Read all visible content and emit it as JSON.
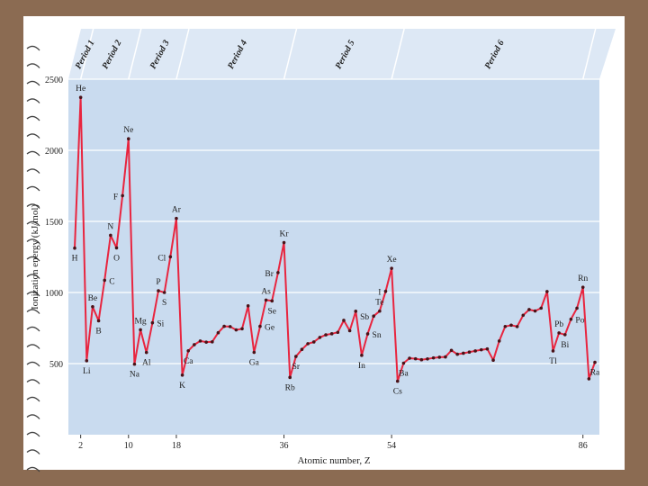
{
  "chart_data": {
    "type": "line",
    "xlabel": "Atomic number, Z",
    "ylabel": "Ionization energy (kJ/mol)",
    "xlim": [
      1,
      88
    ],
    "ylim": [
      0,
      2500
    ],
    "x_ticks": [
      2,
      10,
      18,
      36,
      54,
      86
    ],
    "y_ticks": [
      500,
      1000,
      1500,
      2000,
      2500
    ],
    "grid": true,
    "periods": [
      {
        "label": "Period 1",
        "from": 1,
        "to": 2
      },
      {
        "label": "Period 2",
        "from": 2,
        "to": 10
      },
      {
        "label": "Period 3",
        "from": 10,
        "to": 18
      },
      {
        "label": "Period 4",
        "from": 18,
        "to": 36
      },
      {
        "label": "Period 5",
        "from": 36,
        "to": 54
      },
      {
        "label": "Period 6",
        "from": 54,
        "to": 86
      }
    ],
    "series": [
      {
        "values": [
          [
            1,
            1312
          ],
          [
            2,
            2372
          ],
          [
            3,
            520
          ],
          [
            4,
            900
          ],
          [
            5,
            801
          ],
          [
            6,
            1086
          ],
          [
            7,
            1402
          ],
          [
            8,
            1314
          ],
          [
            9,
            1681
          ],
          [
            10,
            2081
          ],
          [
            11,
            496
          ],
          [
            12,
            738
          ],
          [
            13,
            578
          ],
          [
            14,
            787
          ],
          [
            15,
            1012
          ],
          [
            16,
            1000
          ],
          [
            17,
            1251
          ],
          [
            18,
            1521
          ],
          [
            19,
            419
          ],
          [
            20,
            590
          ],
          [
            21,
            633
          ],
          [
            22,
            659
          ],
          [
            23,
            651
          ],
          [
            24,
            653
          ],
          [
            25,
            717
          ],
          [
            26,
            762
          ],
          [
            27,
            760
          ],
          [
            28,
            737
          ],
          [
            29,
            745
          ],
          [
            30,
            906
          ],
          [
            31,
            579
          ],
          [
            32,
            762
          ],
          [
            33,
            947
          ],
          [
            34,
            941
          ],
          [
            35,
            1140
          ],
          [
            36,
            1351
          ],
          [
            37,
            403
          ],
          [
            38,
            550
          ],
          [
            39,
            600
          ],
          [
            40,
            640
          ],
          [
            41,
            652
          ],
          [
            42,
            684
          ],
          [
            43,
            702
          ],
          [
            44,
            710
          ],
          [
            45,
            720
          ],
          [
            46,
            804
          ],
          [
            47,
            731
          ],
          [
            48,
            868
          ],
          [
            49,
            558
          ],
          [
            50,
            709
          ],
          [
            51,
            834
          ],
          [
            52,
            869
          ],
          [
            53,
            1008
          ],
          [
            54,
            1170
          ],
          [
            55,
            376
          ],
          [
            56,
            503
          ],
          [
            57,
            538
          ],
          [
            58,
            534
          ],
          [
            59,
            527
          ],
          [
            60,
            533
          ],
          [
            61,
            540
          ],
          [
            62,
            545
          ],
          [
            63,
            547
          ],
          [
            64,
            593
          ],
          [
            65,
            566
          ],
          [
            66,
            573
          ],
          [
            67,
            581
          ],
          [
            68,
            589
          ],
          [
            69,
            597
          ],
          [
            70,
            603
          ],
          [
            71,
            524
          ],
          [
            72,
            659
          ],
          [
            73,
            761
          ],
          [
            74,
            770
          ],
          [
            75,
            760
          ],
          [
            76,
            840
          ],
          [
            77,
            880
          ],
          [
            78,
            870
          ],
          [
            79,
            890
          ],
          [
            80,
            1007
          ],
          [
            81,
            589
          ],
          [
            82,
            716
          ],
          [
            83,
            703
          ],
          [
            84,
            812
          ],
          [
            85,
            890
          ],
          [
            86,
            1037
          ],
          [
            87,
            393
          ],
          [
            88,
            509
          ]
        ]
      }
    ],
    "labels": [
      {
        "text": "H",
        "x": 1,
        "y": 1312,
        "pos": "below"
      },
      {
        "text": "He",
        "x": 2,
        "y": 2372,
        "pos": "above"
      },
      {
        "text": "Li",
        "x": 3,
        "y": 520,
        "pos": "below"
      },
      {
        "text": "Be",
        "x": 4,
        "y": 900,
        "pos": "above"
      },
      {
        "text": "B",
        "x": 5,
        "y": 801,
        "pos": "below"
      },
      {
        "text": "C",
        "x": 6,
        "y": 1086,
        "pos": "right"
      },
      {
        "text": "N",
        "x": 7,
        "y": 1402,
        "pos": "above"
      },
      {
        "text": "O",
        "x": 8,
        "y": 1314,
        "pos": "below"
      },
      {
        "text": "F",
        "x": 9,
        "y": 1681,
        "pos": "left"
      },
      {
        "text": "Ne",
        "x": 10,
        "y": 2081,
        "pos": "above"
      },
      {
        "text": "Na",
        "x": 11,
        "y": 496,
        "pos": "below"
      },
      {
        "text": "Mg",
        "x": 12,
        "y": 738,
        "pos": "above"
      },
      {
        "text": "Al",
        "x": 13,
        "y": 578,
        "pos": "below"
      },
      {
        "text": "Si",
        "x": 14,
        "y": 787,
        "pos": "right"
      },
      {
        "text": "P",
        "x": 15,
        "y": 1012,
        "pos": "above"
      },
      {
        "text": "S",
        "x": 16,
        "y": 1000,
        "pos": "below"
      },
      {
        "text": "Cl",
        "x": 17,
        "y": 1251,
        "pos": "left"
      },
      {
        "text": "Ar",
        "x": 18,
        "y": 1521,
        "pos": "above"
      },
      {
        "text": "K",
        "x": 19,
        "y": 419,
        "pos": "below"
      },
      {
        "text": "Ca",
        "x": 20,
        "y": 590,
        "pos": "below"
      },
      {
        "text": "Ga",
        "x": 31,
        "y": 579,
        "pos": "below"
      },
      {
        "text": "Ge",
        "x": 32,
        "y": 762,
        "pos": "right"
      },
      {
        "text": "As",
        "x": 33,
        "y": 947,
        "pos": "above"
      },
      {
        "text": "Se",
        "x": 34,
        "y": 941,
        "pos": "below"
      },
      {
        "text": "Br",
        "x": 35,
        "y": 1140,
        "pos": "left"
      },
      {
        "text": "Kr",
        "x": 36,
        "y": 1351,
        "pos": "above"
      },
      {
        "text": "Rb",
        "x": 37,
        "y": 403,
        "pos": "below"
      },
      {
        "text": "Sr",
        "x": 38,
        "y": 550,
        "pos": "below"
      },
      {
        "text": "In",
        "x": 49,
        "y": 558,
        "pos": "below"
      },
      {
        "text": "Sn",
        "x": 50,
        "y": 709,
        "pos": "right"
      },
      {
        "text": "Sb",
        "x": 51,
        "y": 834,
        "pos": "left"
      },
      {
        "text": "Te",
        "x": 52,
        "y": 869,
        "pos": "above"
      },
      {
        "text": "I",
        "x": 53,
        "y": 1008,
        "pos": "left"
      },
      {
        "text": "Xe",
        "x": 54,
        "y": 1170,
        "pos": "above"
      },
      {
        "text": "Cs",
        "x": 55,
        "y": 376,
        "pos": "below"
      },
      {
        "text": "Ba",
        "x": 56,
        "y": 503,
        "pos": "below"
      },
      {
        "text": "Tl",
        "x": 81,
        "y": 589,
        "pos": "below"
      },
      {
        "text": "Pb",
        "x": 82,
        "y": 716,
        "pos": "above"
      },
      {
        "text": "Bi",
        "x": 83,
        "y": 703,
        "pos": "below"
      },
      {
        "text": "Po",
        "x": 84,
        "y": 812,
        "pos": "right"
      },
      {
        "text": "Rn",
        "x": 86,
        "y": 1037,
        "pos": "above"
      },
      {
        "text": "Ra",
        "x": 88,
        "y": 509,
        "pos": "below"
      }
    ],
    "colors": {
      "plot_background": "#c9dbef",
      "period_band": "#dde8f5",
      "line": "#e8253f",
      "point": "#4a1218",
      "frame_background": "#8b6b52"
    }
  }
}
